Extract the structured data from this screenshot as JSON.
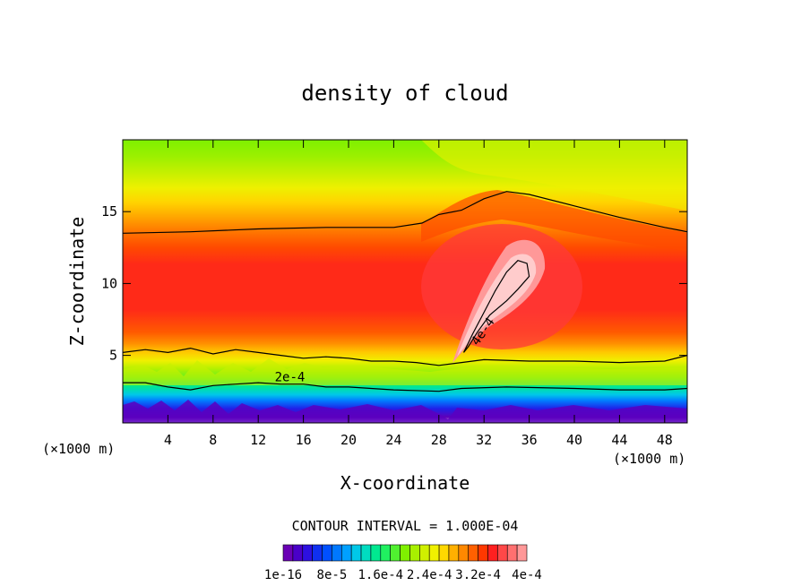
{
  "chart_data": {
    "type": "contour",
    "title": "density of cloud",
    "xlabel": "X-coordinate",
    "ylabel": "Z-coordinate",
    "x_unit_left": "(×1000 m)",
    "x_unit_right": "(×1000 m)",
    "xlim": [
      0,
      50
    ],
    "ylim": [
      0.3,
      20
    ],
    "xticks": [
      4,
      8,
      12,
      16,
      20,
      24,
      28,
      32,
      36,
      40,
      44,
      48
    ],
    "xtick_labels": [
      "4",
      "8",
      "12",
      "16",
      "20",
      "24",
      "28",
      "32",
      "36",
      "40",
      "44",
      "48"
    ],
    "yticks": [
      5,
      10,
      15
    ],
    "ytick_labels": [
      "5",
      "10",
      "15"
    ],
    "contour_interval_text": "CONTOUR INTERVAL = 1.000E-04",
    "contour_labels": [
      {
        "text": "2e-4",
        "x": 14.8,
        "z": 3.2
      },
      {
        "text": "4e-4",
        "x": 32.2,
        "z": 6.5
      }
    ],
    "contour_lines": [
      {
        "level": "1e-4",
        "points": [
          [
            0,
            13.5
          ],
          [
            6,
            13.6
          ],
          [
            12,
            13.8
          ],
          [
            18,
            13.9
          ],
          [
            24,
            13.9
          ],
          [
            26.5,
            14.2
          ],
          [
            28,
            14.8
          ],
          [
            30,
            15.1
          ],
          [
            32,
            15.9
          ],
          [
            34,
            16.4
          ],
          [
            36,
            16.2
          ],
          [
            40,
            15.4
          ],
          [
            44,
            14.6
          ],
          [
            48,
            13.9
          ],
          [
            50,
            13.6
          ]
        ]
      },
      {
        "level": "1e-4",
        "points": [
          [
            0,
            5.2
          ],
          [
            2,
            5.4
          ],
          [
            4,
            5.2
          ],
          [
            6,
            5.5
          ],
          [
            8,
            5.1
          ],
          [
            10,
            5.4
          ],
          [
            12,
            5.2
          ],
          [
            14,
            5.0
          ],
          [
            16,
            4.8
          ],
          [
            18,
            4.9
          ],
          [
            20,
            4.8
          ],
          [
            22,
            4.6
          ],
          [
            24,
            4.6
          ],
          [
            26,
            4.5
          ],
          [
            28,
            4.3
          ],
          [
            30,
            4.5
          ],
          [
            32,
            4.7
          ],
          [
            36,
            4.6
          ],
          [
            40,
            4.6
          ],
          [
            44,
            4.5
          ],
          [
            48,
            4.6
          ],
          [
            50,
            5.0
          ]
        ]
      },
      {
        "level": "2e-4",
        "points": [
          [
            0,
            3.1
          ],
          [
            2,
            3.1
          ],
          [
            4,
            2.8
          ],
          [
            6,
            2.6
          ],
          [
            8,
            2.9
          ],
          [
            10,
            3.0
          ],
          [
            12,
            3.1
          ],
          [
            14,
            3.0
          ],
          [
            16,
            3.0
          ],
          [
            18,
            2.8
          ],
          [
            20,
            2.8
          ],
          [
            24,
            2.6
          ],
          [
            28,
            2.5
          ],
          [
            30,
            2.7
          ],
          [
            34,
            2.8
          ],
          [
            40,
            2.7
          ],
          [
            44,
            2.6
          ],
          [
            48,
            2.6
          ],
          [
            50,
            2.7
          ]
        ]
      },
      {
        "level": "4e-4",
        "points": [
          [
            30.2,
            5.2
          ],
          [
            31,
            6.5
          ],
          [
            32,
            8.0
          ],
          [
            33,
            9.5
          ],
          [
            34,
            10.8
          ],
          [
            35,
            11.6
          ],
          [
            35.8,
            11.4
          ],
          [
            36,
            10.5
          ],
          [
            35,
            9.6
          ],
          [
            34,
            8.8
          ],
          [
            32.5,
            7.8
          ],
          [
            31.4,
            6.6
          ],
          [
            30.6,
            5.6
          ],
          [
            30.2,
            5.2
          ]
        ]
      }
    ],
    "colorbar": {
      "colors": [
        "#6a00b5",
        "#4a00c8",
        "#2d10e0",
        "#1030f0",
        "#0050ff",
        "#0078ff",
        "#00a0ff",
        "#00c8e8",
        "#00dcc0",
        "#00e890",
        "#20f060",
        "#50f030",
        "#80f000",
        "#a8f000",
        "#d0f000",
        "#f0f000",
        "#ffd800",
        "#ffb000",
        "#ff8800",
        "#ff6000",
        "#ff3800",
        "#ff2020",
        "#ff4848",
        "#ff7070",
        "#ff9898"
      ],
      "tick_labels": [
        "1e-16",
        "8e-5",
        "1.6e-4",
        "2.4e-4",
        "3.2e-4",
        "4e-4"
      ]
    },
    "grid": false,
    "legend": "colorbar-bottom"
  }
}
